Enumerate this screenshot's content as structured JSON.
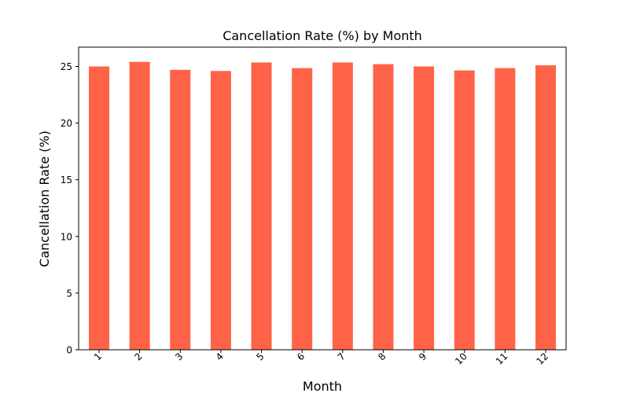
{
  "chart_data": {
    "type": "bar",
    "title": "Cancellation Rate (%) by Month",
    "xlabel": "Month",
    "ylabel": "Cancellation Rate (%)",
    "categories": [
      "1",
      "2",
      "3",
      "4",
      "5",
      "6",
      "7",
      "8",
      "9",
      "10",
      "11",
      "12"
    ],
    "values": [
      25.0,
      25.4,
      24.7,
      24.6,
      25.35,
      24.85,
      25.35,
      25.2,
      25.0,
      24.65,
      24.85,
      25.1
    ],
    "ylim": [
      0,
      26.7
    ],
    "yticks": [
      0,
      5,
      10,
      15,
      20,
      25
    ],
    "bar_color": "#ff6347",
    "grid": false,
    "legend": "none"
  }
}
